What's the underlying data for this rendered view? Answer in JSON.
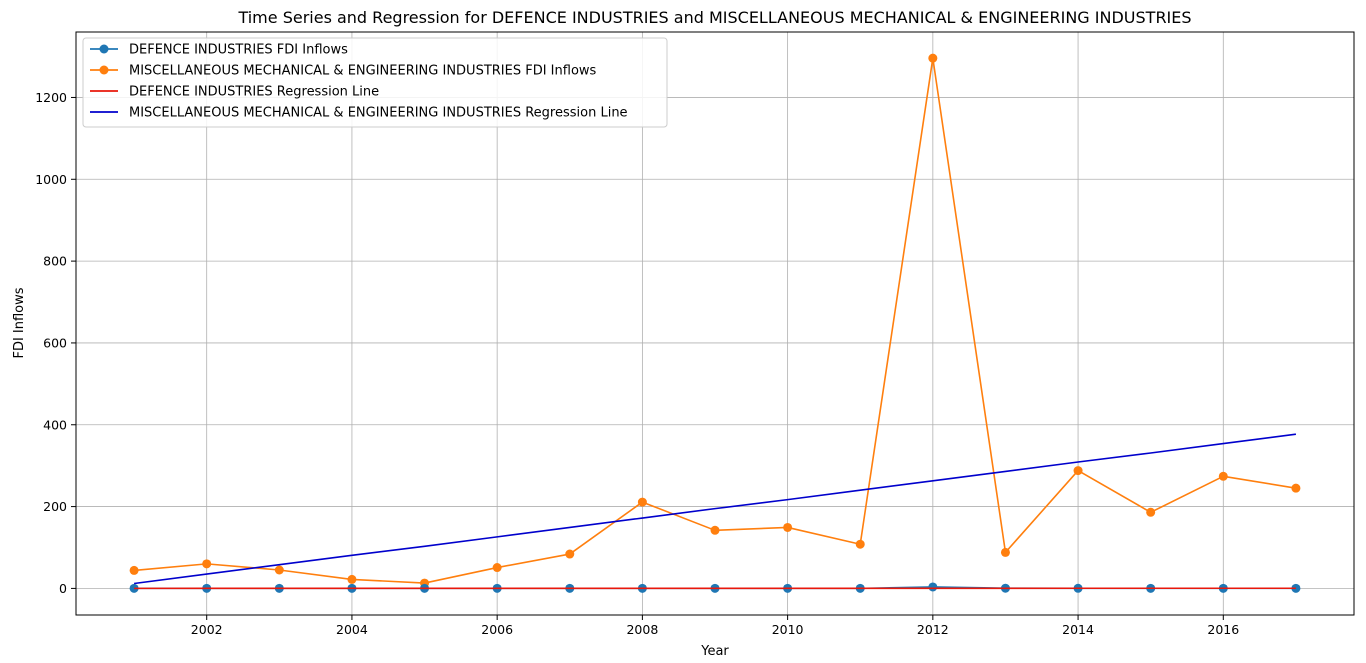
{
  "chart_data": {
    "type": "line",
    "title": "Time Series and Regression for DEFENCE INDUSTRIES and MISCELLANEOUS MECHANICAL & ENGINEERING INDUSTRIES",
    "xlabel": "Year",
    "ylabel": "FDI Inflows",
    "x": [
      2001,
      2002,
      2003,
      2004,
      2005,
      2006,
      2007,
      2008,
      2009,
      2010,
      2011,
      2012,
      2013,
      2014,
      2015,
      2016,
      2017
    ],
    "xlim": [
      2000.2,
      2017.8
    ],
    "ylim": [
      -65,
      1360
    ],
    "xticks": [
      2002,
      2004,
      2006,
      2008,
      2010,
      2012,
      2014,
      2016
    ],
    "yticks": [
      0,
      200,
      400,
      600,
      800,
      1000,
      1200
    ],
    "grid": true,
    "legend_position": "top-left",
    "series": [
      {
        "name": "DEFENCE INDUSTRIES FDI Inflows",
        "style": "line-marker",
        "color": "#1f77b4",
        "values": [
          0.1,
          0.1,
          0.1,
          0.2,
          0.1,
          0.2,
          0.1,
          0.2,
          0.2,
          0.1,
          0.1,
          3.5,
          0.5,
          0.3,
          0.2,
          0.2,
          0.1
        ]
      },
      {
        "name": "MISCELLANEOUS MECHANICAL & ENGINEERING INDUSTRIES FDI Inflows",
        "style": "line-marker",
        "color": "#ff7f0e",
        "values": [
          44,
          60,
          45,
          22,
          13,
          51,
          84,
          211,
          142,
          149,
          108,
          1296,
          88,
          288,
          186,
          274,
          245
        ]
      },
      {
        "name": "DEFENCE INDUSTRIES Regression Line",
        "style": "line",
        "color": "#e8180c",
        "values": [
          0.1,
          0.12,
          0.14,
          0.16,
          0.18,
          0.2,
          0.22,
          0.24,
          0.26,
          0.28,
          0.3,
          0.32,
          0.34,
          0.36,
          0.38,
          0.4,
          0.42
        ]
      },
      {
        "name": "MISCELLANEOUS MECHANICAL & ENGINEERING INDUSTRIES Regression Line",
        "style": "line",
        "color": "#0000cc",
        "values": [
          12,
          35,
          58,
          81,
          103,
          126,
          149,
          172,
          195,
          217,
          240,
          263,
          286,
          309,
          331,
          354,
          377
        ]
      }
    ]
  }
}
